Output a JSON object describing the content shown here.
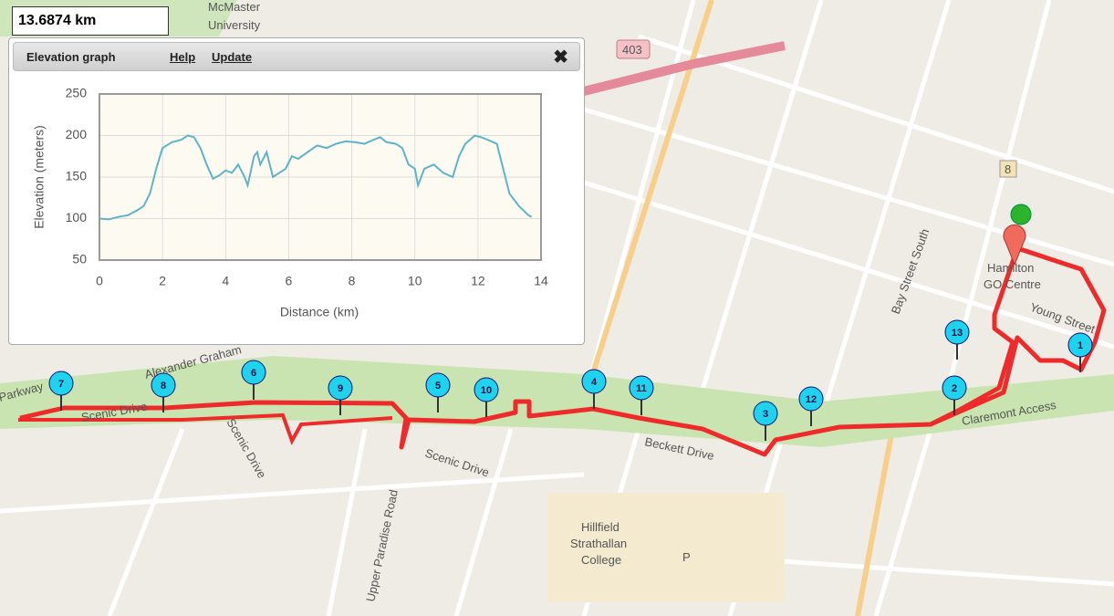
{
  "distance_box": {
    "text": "13.6874 km"
  },
  "panel": {
    "title": "Elevation graph",
    "help": "Help",
    "update": "Update"
  },
  "chart_data": {
    "type": "line",
    "x_label": "Distance (km)",
    "y_label": "Elevation (meters)",
    "x": [
      0,
      0.3,
      0.6,
      0.9,
      1.2,
      1.4,
      1.6,
      1.8,
      2.0,
      2.3,
      2.6,
      2.8,
      3.0,
      3.2,
      3.4,
      3.6,
      3.8,
      4.0,
      4.2,
      4.4,
      4.6,
      4.7,
      4.9,
      5.0,
      5.1,
      5.3,
      5.5,
      5.7,
      5.9,
      6.1,
      6.3,
      6.6,
      6.9,
      7.2,
      7.5,
      7.8,
      8.1,
      8.4,
      8.7,
      8.9,
      9.1,
      9.4,
      9.6,
      9.8,
      10.0,
      10.1,
      10.3,
      10.6,
      10.9,
      11.2,
      11.4,
      11.6,
      11.9,
      12.1,
      12.3,
      12.6,
      12.8,
      13.0,
      13.3,
      13.6,
      13.7
    ],
    "values": [
      100,
      99,
      102,
      104,
      110,
      115,
      130,
      160,
      185,
      192,
      195,
      200,
      198,
      185,
      165,
      148,
      152,
      158,
      155,
      165,
      150,
      140,
      175,
      180,
      165,
      180,
      150,
      155,
      160,
      175,
      172,
      180,
      188,
      185,
      190,
      193,
      192,
      190,
      195,
      198,
      192,
      190,
      185,
      165,
      160,
      140,
      160,
      165,
      155,
      150,
      175,
      190,
      200,
      198,
      195,
      190,
      160,
      130,
      115,
      104,
      102
    ],
    "color": "#5fb3c8",
    "xlim": [
      0,
      14
    ],
    "xticks": [
      0,
      2,
      4,
      6,
      8,
      10,
      12,
      14
    ],
    "ylim": [
      50,
      250
    ],
    "yticks": [
      50,
      100,
      150,
      200,
      250
    ],
    "grid": true
  },
  "map": {
    "labels": [
      "McMaster",
      "University",
      "Alexander Graham",
      "Parkway",
      "Scenic Drive",
      "Scenic Drive",
      "Scenic Drive",
      "Beckett Drive",
      "Claremont Access",
      "Hamilton",
      "GO Centre",
      "Young Street",
      "Bay Street South",
      "Upper Paradise Road",
      "Hillfield",
      "Strathallan",
      "College",
      "403",
      "8",
      "P"
    ],
    "markers": [
      "1",
      "2",
      "3",
      "4",
      "5",
      "6",
      "7",
      "8",
      "9",
      "10",
      "11",
      "12",
      "13"
    ]
  }
}
